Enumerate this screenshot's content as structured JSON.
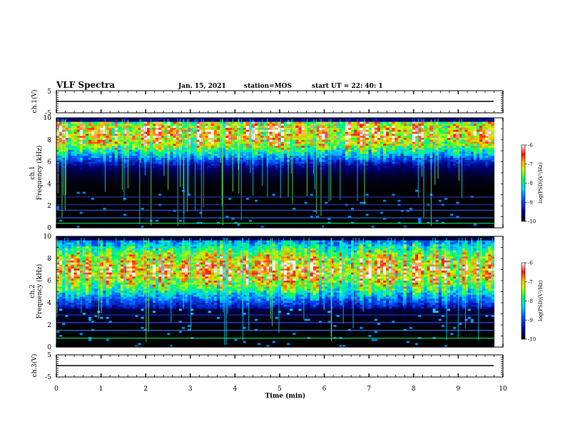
{
  "header": {
    "title": "VLF Spectra",
    "date": "Jan. 15, 2021",
    "station": "station=MOS",
    "start": "start UT =  22: 40: 1"
  },
  "chart_data": [
    {
      "type": "line",
      "panel": "ch1-voltage",
      "ylabel": "ch.1(V)",
      "ylim": [
        -5,
        5
      ],
      "y_ticks": [
        "5",
        "-5"
      ],
      "series": [
        {
          "x": [
            0,
            9.8
          ],
          "values": [
            0,
            0
          ]
        }
      ]
    },
    {
      "type": "heatmap",
      "panel": "ch1-spectrogram",
      "ylabel": "ch.1\nFrequency (kHz)",
      "ylim": [
        0,
        10
      ],
      "y_ticks": [
        "0",
        "2",
        "4",
        "6",
        "8",
        "10"
      ],
      "colorbar": {
        "label": "log(PSD)(V²/Hz)",
        "range": [
          -10,
          -6
        ],
        "ticks": [
          "-6",
          "-7",
          "-8",
          "-9",
          "-10"
        ]
      },
      "dominant_band_khz": [
        6,
        9.5
      ]
    },
    {
      "type": "heatmap",
      "panel": "ch2-spectrogram",
      "ylabel": "ch.2\nFrequency (kHz)",
      "ylim": [
        0,
        10
      ],
      "y_ticks": [
        "0",
        "2",
        "4",
        "6",
        "8",
        "10"
      ],
      "colorbar": {
        "label": "log(PSD)(V²/Hz)",
        "range": [
          -10,
          -6
        ],
        "ticks": [
          "-6",
          "-7",
          "-8",
          "-9",
          "-10"
        ]
      },
      "dominant_band_khz": [
        5,
        9
      ]
    },
    {
      "type": "line",
      "panel": "ch3-voltage",
      "ylabel": "ch.3(V)",
      "ylim": [
        -5,
        5
      ],
      "y_ticks": [
        "5",
        "-5"
      ],
      "series": [
        {
          "x": [
            0,
            9.8
          ],
          "values": [
            0,
            0
          ]
        }
      ]
    }
  ],
  "x_axis": {
    "label": "Time (min)",
    "range": [
      0,
      10
    ],
    "ticks": [
      "0",
      "1",
      "2",
      "3",
      "4",
      "5",
      "6",
      "7",
      "8",
      "9",
      "10"
    ]
  }
}
